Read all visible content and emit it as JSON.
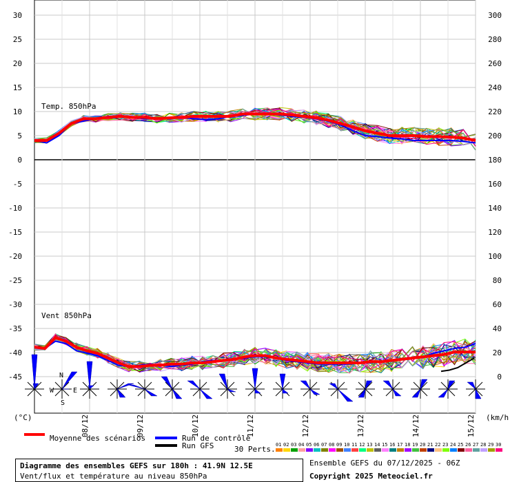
{
  "chart_data": {
    "type": "line",
    "panels": [
      {
        "name": "Temp. 850hPa",
        "left_axis": {
          "unit": "(°C)",
          "ticks": [
            30,
            25,
            20,
            15,
            10,
            5,
            0,
            -5,
            -10,
            -15,
            -20,
            -25,
            -30,
            -35,
            -40,
            -45
          ],
          "ylim": [
            -50,
            32
          ]
        },
        "right_axis": {
          "unit": "(km/h)",
          "ticks": [
            300,
            280,
            260,
            240,
            220,
            200,
            180,
            160,
            140,
            120,
            100,
            80,
            60,
            40,
            20,
            0
          ]
        }
      },
      {
        "name": "Vent 850hPa",
        "left_axis_range": [
          -45,
          -30
        ],
        "right_axis_range": [
          0,
          60
        ]
      }
    ],
    "x_ticks": [
      "08/12",
      "09/12",
      "10/12",
      "11/12",
      "12/12",
      "13/12",
      "14/12",
      "15/12"
    ],
    "x_step_hours": 6,
    "series": [
      {
        "name": "Moyenne des scénarios",
        "color": "#ff0000",
        "temp_850": [
          4,
          4,
          5.5,
          7.5,
          8.5,
          8.5,
          8.8,
          9,
          8.8,
          8.8,
          8.5,
          8.7,
          8.8,
          9.0,
          9.0,
          9.0,
          9.0,
          9.5,
          9.5,
          9.5,
          9.5,
          9.3,
          9.0,
          8.7,
          8.2,
          7.5,
          6.8,
          6.0,
          5.5,
          5.0,
          5.0,
          5.0,
          4.8,
          4.8,
          4.7,
          4.5,
          4.0
        ],
        "wind_850": [
          25,
          24,
          33,
          30,
          25,
          22,
          20,
          16,
          12,
          9,
          9,
          10,
          10,
          11,
          11,
          12,
          12,
          13,
          14,
          15,
          17,
          18,
          18,
          16,
          15,
          14,
          13,
          12,
          12,
          12,
          12,
          12,
          13,
          13,
          14,
          15,
          16,
          17,
          18,
          19,
          21,
          21,
          21
        ]
      },
      {
        "name": "Run de contrôle",
        "color": "#0000ff",
        "temp_850": [
          4,
          3.5,
          5,
          7.5,
          8,
          8.5,
          9,
          9,
          8.8,
          8.5,
          8.5,
          8.5,
          8.8,
          8.5,
          8.3,
          8.5,
          9,
          9.2,
          9.5,
          9.5,
          9.3,
          9.0,
          8.8,
          8.5,
          8.0,
          7.2,
          6.0,
          5.0,
          4.8,
          4.5,
          4.3,
          4.0,
          4.0,
          4.0,
          4.0,
          3.8,
          3.5
        ],
        "wind_850": [
          25,
          24,
          30,
          28,
          22,
          20,
          18,
          14,
          10,
          9,
          10,
          11,
          10,
          9,
          10,
          11,
          13,
          14,
          14,
          15,
          16,
          17,
          17,
          16,
          14,
          13,
          12,
          11,
          11,
          11,
          11,
          12,
          12,
          13,
          14,
          15,
          16,
          17,
          20,
          22,
          24,
          25,
          28
        ]
      },
      {
        "name": "Run GFS",
        "color": "#000000",
        "wind_tail": [
          5,
          6,
          8,
          12,
          16
        ]
      }
    ],
    "perturbation_count": 30,
    "perturbation_label": "30 Perts.",
    "perturbation_ids": [
      "01",
      "02",
      "03",
      "04",
      "05",
      "06",
      "07",
      "08",
      "09",
      "10",
      "11",
      "12",
      "13",
      "14",
      "15",
      "16",
      "17",
      "18",
      "19",
      "20",
      "21",
      "22",
      "23",
      "24",
      "25",
      "26",
      "27",
      "28",
      "29",
      "30"
    ],
    "perturbation_colors": [
      "#ff8000",
      "#ffd700",
      "#00a000",
      "#ffa0a0",
      "#8000ff",
      "#00c0c0",
      "#808000",
      "#ff00ff",
      "#a05000",
      "#4080ff",
      "#ff4040",
      "#00ff80",
      "#c0c000",
      "#606060",
      "#ff80ff",
      "#008080",
      "#c08000",
      "#a000ff",
      "#40c040",
      "#c04000",
      "#000080",
      "#ffc080",
      "#80ff00",
      "#0080ff",
      "#800000",
      "#ff60a0",
      "#60a0a0",
      "#c0a0ff",
      "#a0a000",
      "#ff0080"
    ],
    "wind_rose_compass": {
      "n": "N",
      "w": "W",
      "e": "E",
      "s": "S"
    }
  },
  "legend": {
    "mean": "Moyenne des scénarios",
    "control": "Run de contrôle",
    "gfs": "Run GFS",
    "perts": "30 Perts."
  },
  "footer": {
    "title": "Diagramme des ensembles GEFS sur 180h : 41.9N 12.5E",
    "subtitle": "Vent/flux et température au niveau 850hPa",
    "run": "Ensemble GEFS du 07/12/2025 - 06Z",
    "copyright": "Copyright 2025 Meteociel.fr"
  }
}
